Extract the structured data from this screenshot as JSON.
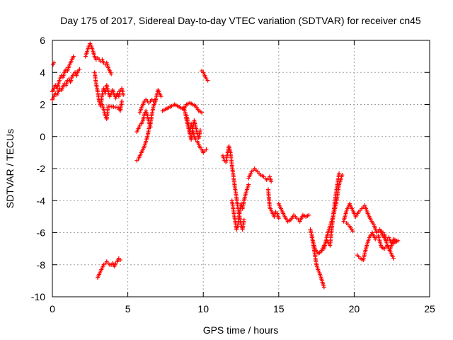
{
  "chart_data": {
    "type": "scatter",
    "title": "Day 175 of 2017, Sidereal Day-to-day VTEC variation (SDTVAR) for receiver cn45",
    "xlabel": "GPS time / hours",
    "ylabel": "SDTVAR / TECUs",
    "xlim": [
      0,
      25
    ],
    "ylim": [
      -10,
      6
    ],
    "xticks": [
      0,
      5,
      10,
      15,
      20,
      25
    ],
    "xtick_labels": [
      "0",
      "5",
      "10",
      "15",
      "20",
      "25"
    ],
    "yticks": [
      -10,
      -8,
      -6,
      -4,
      -2,
      0,
      2,
      4,
      6
    ],
    "ytick_labels": [
      "-10",
      "-8",
      "-6",
      "-4",
      "-2",
      "0",
      "2",
      "4",
      "6"
    ],
    "grid": true,
    "marker": "+",
    "marker_color": "#ff0000",
    "series": [
      {
        "name": "s1",
        "x": [
          0.0,
          0.1,
          0.2,
          0.3,
          0.4,
          0.5,
          0.6,
          0.7,
          0.8,
          0.9,
          1.0,
          1.1,
          1.2,
          1.3,
          1.4,
          1.5,
          1.6,
          1.7,
          1.8
        ],
        "y": [
          2.3,
          2.5,
          2.7,
          2.6,
          2.8,
          3.0,
          2.9,
          3.1,
          3.3,
          3.2,
          3.5,
          3.6,
          3.4,
          3.7,
          3.9,
          4.0,
          3.8,
          4.1,
          4.2
        ]
      },
      {
        "name": "s2",
        "x": [
          0.0,
          0.1,
          0.2,
          0.3,
          0.4,
          0.5,
          0.6,
          0.7,
          0.8,
          0.9,
          1.0,
          1.1,
          1.2,
          1.3,
          1.4
        ],
        "y": [
          2.8,
          3.0,
          3.2,
          3.0,
          3.3,
          3.6,
          3.8,
          3.7,
          4.0,
          4.2,
          4.1,
          4.4,
          4.6,
          4.8,
          5.0
        ]
      },
      {
        "name": "s3",
        "x": [
          0.05,
          0.1
        ],
        "y": [
          4.5,
          4.6
        ]
      },
      {
        "name": "s4",
        "x": [
          2.2,
          2.3,
          2.4,
          2.5,
          2.6,
          2.7,
          2.8,
          2.9,
          3.0,
          3.1,
          3.2,
          3.3,
          3.4,
          3.5,
          3.6,
          3.7,
          3.8,
          3.9
        ],
        "y": [
          5.0,
          5.3,
          5.6,
          5.8,
          5.6,
          5.3,
          5.0,
          4.8,
          4.9,
          4.8,
          4.7,
          4.8,
          4.6,
          4.5,
          4.6,
          4.3,
          4.1,
          3.9
        ]
      },
      {
        "name": "s5",
        "x": [
          2.8,
          2.9,
          3.0,
          3.1,
          3.2,
          3.3,
          3.4,
          3.5,
          3.6,
          3.7,
          3.8,
          3.9,
          4.0,
          4.1,
          4.2,
          4.3,
          4.4,
          4.5,
          4.6,
          4.7
        ],
        "y": [
          4.0,
          3.3,
          2.8,
          2.2,
          1.9,
          2.6,
          3.0,
          2.7,
          3.2,
          2.8,
          2.5,
          2.7,
          2.9,
          2.6,
          2.4,
          2.7,
          2.5,
          2.9,
          3.0,
          2.6
        ]
      },
      {
        "name": "s6",
        "x": [
          3.3,
          3.4,
          3.5,
          3.6,
          3.7,
          4.4,
          4.5,
          4.6
        ],
        "y": [
          2.0,
          1.7,
          1.3,
          1.1,
          1.9,
          1.8,
          1.6,
          2.2
        ]
      },
      {
        "name": "s7",
        "x": [
          3.0,
          3.1,
          3.2,
          3.3,
          3.4,
          3.5,
          3.6,
          3.7,
          3.8,
          3.9,
          4.0,
          4.1,
          4.2,
          4.3,
          4.4,
          4.5
        ],
        "y": [
          -8.8,
          -8.6,
          -8.4,
          -8.2,
          -8.0,
          -7.9,
          -7.8,
          -7.9,
          -8.0,
          -8.0,
          -7.9,
          -8.1,
          -7.9,
          -7.8,
          -7.6,
          -7.7
        ]
      },
      {
        "name": "s8",
        "x": [
          5.6,
          5.7,
          5.8,
          5.9,
          6.0,
          6.1,
          6.2,
          6.3,
          6.4,
          6.5,
          6.6,
          6.7,
          6.8,
          6.9,
          7.0,
          7.1,
          7.2
        ],
        "y": [
          -1.5,
          -1.4,
          -1.2,
          -1.0,
          -0.8,
          -0.6,
          -0.3,
          0.0,
          0.5,
          0.8,
          1.4,
          1.9,
          2.1,
          2.5,
          2.9,
          2.7,
          2.5
        ]
      },
      {
        "name": "s9",
        "x": [
          5.6,
          5.7,
          5.8,
          5.9,
          6.0,
          6.1,
          6.2,
          6.3,
          6.4,
          6.5
        ],
        "y": [
          0.3,
          0.5,
          0.7,
          0.8,
          1.0,
          1.4,
          1.6,
          1.3,
          0.9,
          0.6
        ]
      },
      {
        "name": "s10",
        "x": [
          5.8,
          5.9,
          6.0,
          6.1,
          6.2,
          6.3,
          6.4,
          6.5,
          6.6,
          6.7,
          6.8
        ],
        "y": [
          1.5,
          1.8,
          2.0,
          2.2,
          2.3,
          2.2,
          2.1,
          2.2,
          2.3,
          2.2,
          2.3
        ]
      },
      {
        "name": "s11",
        "x": [
          7.3,
          7.5,
          7.7,
          7.9,
          8.1,
          8.3,
          8.5,
          8.7,
          8.9,
          9.1,
          9.3,
          9.5,
          9.7,
          9.9
        ],
        "y": [
          1.6,
          1.7,
          1.8,
          1.9,
          2.0,
          1.9,
          1.8,
          1.7,
          2.0,
          2.1,
          2.0,
          1.9,
          1.6,
          1.5
        ]
      },
      {
        "name": "s12",
        "x": [
          8.7,
          8.8,
          8.9,
          9.0,
          9.1,
          9.2,
          9.3,
          9.4,
          9.5,
          9.6,
          9.7,
          9.8,
          9.9,
          10.0,
          10.1,
          10.2
        ],
        "y": [
          1.8,
          1.5,
          1.0,
          0.6,
          0.2,
          0.8,
          0.4,
          0.0,
          -0.2,
          -0.3,
          -0.5,
          -0.7,
          -0.8,
          -1.0,
          -0.9,
          -0.8
        ]
      },
      {
        "name": "s13",
        "x": [
          8.9,
          9.0,
          9.1,
          9.2,
          9.3,
          9.4,
          9.5,
          9.6,
          9.7,
          9.8
        ],
        "y": [
          1.3,
          0.8,
          0.3,
          -0.2,
          0.5,
          1.0,
          0.6,
          0.2,
          -0.1,
          0.4
        ]
      },
      {
        "name": "s14",
        "x": [
          9.9,
          10.0,
          10.1,
          10.2,
          10.3
        ],
        "y": [
          4.1,
          4.0,
          3.8,
          3.6,
          3.5
        ]
      },
      {
        "name": "s15",
        "x": [
          11.3,
          11.4,
          11.5,
          11.7,
          11.8,
          11.9,
          12.0,
          12.1,
          12.2,
          12.3,
          12.4,
          12.5,
          12.6,
          12.7
        ],
        "y": [
          -1.2,
          -1.5,
          -1.6,
          -0.6,
          -1.0,
          -1.8,
          -2.5,
          -3.2,
          -3.8,
          -4.5,
          -5.0,
          -5.5,
          -5.8,
          -5.2
        ]
      },
      {
        "name": "s16",
        "x": [
          11.9,
          12.0,
          12.1,
          12.2,
          12.3,
          12.4,
          12.5,
          12.6,
          12.7,
          12.8,
          12.9,
          13.0
        ],
        "y": [
          -4.0,
          -4.6,
          -5.2,
          -5.8,
          -5.5,
          -4.8,
          -4.2,
          -4.5,
          -4.0,
          -3.6,
          -3.3,
          -3.0
        ]
      },
      {
        "name": "s17",
        "x": [
          13.0,
          13.2,
          13.4,
          13.6,
          13.8,
          14.0,
          14.2,
          14.4,
          14.5
        ],
        "y": [
          -2.6,
          -2.2,
          -2.0,
          -2.2,
          -2.4,
          -2.5,
          -2.7,
          -2.5,
          -2.8
        ]
      },
      {
        "name": "s18",
        "x": [
          14.3,
          14.4,
          14.5,
          14.6,
          14.7,
          14.8,
          14.9,
          15.0
        ],
        "y": [
          -3.3,
          -4.4,
          -4.6,
          -4.8,
          -5.0,
          -4.7,
          -4.8,
          -5.1
        ]
      },
      {
        "name": "s19",
        "x": [
          15.0,
          15.2,
          15.4,
          15.6,
          15.8,
          16.0,
          16.2,
          16.4,
          16.6,
          16.8,
          17.0
        ],
        "y": [
          -4.2,
          -4.6,
          -5.0,
          -5.3,
          -5.2,
          -4.9,
          -5.1,
          -5.3,
          -4.9,
          -5.0,
          -4.9
        ]
      },
      {
        "name": "s20",
        "x": [
          17.1,
          17.2,
          17.3,
          17.4,
          17.5,
          17.6,
          17.7,
          17.8,
          17.9,
          18.0
        ],
        "y": [
          -5.8,
          -6.2,
          -6.8,
          -7.4,
          -8.0,
          -8.3,
          -8.5,
          -8.8,
          -9.1,
          -9.4
        ]
      },
      {
        "name": "s21",
        "x": [
          17.2,
          17.4,
          17.6,
          17.8,
          18.0,
          18.2,
          18.4,
          18.6,
          18.8,
          19.0
        ],
        "y": [
          -6.3,
          -7.0,
          -7.3,
          -7.2,
          -6.8,
          -6.5,
          -6.8,
          -5.0,
          -3.5,
          -2.3
        ]
      },
      {
        "name": "s22",
        "x": [
          18.0,
          18.2,
          18.4,
          18.6,
          18.8,
          19.0,
          19.2
        ],
        "y": [
          -7.0,
          -6.2,
          -5.6,
          -5.0,
          -4.2,
          -3.0,
          -2.4
        ]
      },
      {
        "name": "s23",
        "x": [
          19.3,
          19.5,
          19.7,
          19.9,
          20.1,
          20.3,
          20.5,
          20.7,
          20.9,
          21.1,
          21.3,
          21.5,
          21.7,
          21.9,
          22.1,
          22.3,
          22.5,
          22.7,
          22.9
        ],
        "y": [
          -5.3,
          -4.6,
          -4.2,
          -4.6,
          -5.0,
          -4.7,
          -4.5,
          -4.3,
          -4.8,
          -5.2,
          -5.5,
          -6.0,
          -5.8,
          -6.2,
          -6.5,
          -6.3,
          -6.7,
          -6.6,
          -6.5
        ]
      },
      {
        "name": "s24",
        "x": [
          19.5,
          19.7,
          19.9
        ],
        "y": [
          -5.4,
          -5.6,
          -5.9
        ]
      },
      {
        "name": "s25",
        "x": [
          20.2,
          20.4,
          20.6,
          20.8,
          21.0,
          21.2,
          21.4,
          21.6,
          21.8,
          22.0,
          22.2,
          22.4,
          22.6
        ],
        "y": [
          -7.4,
          -7.6,
          -7.7,
          -6.9,
          -6.3,
          -6.0,
          -6.4,
          -6.2,
          -6.9,
          -7.0,
          -6.8,
          -7.2,
          -7.6
        ]
      },
      {
        "name": "s26",
        "x": [
          21.8,
          22.0,
          22.2,
          22.4,
          22.6,
          22.8
        ],
        "y": [
          -5.9,
          -6.1,
          -6.8,
          -7.0,
          -6.4,
          -6.5
        ]
      }
    ]
  }
}
